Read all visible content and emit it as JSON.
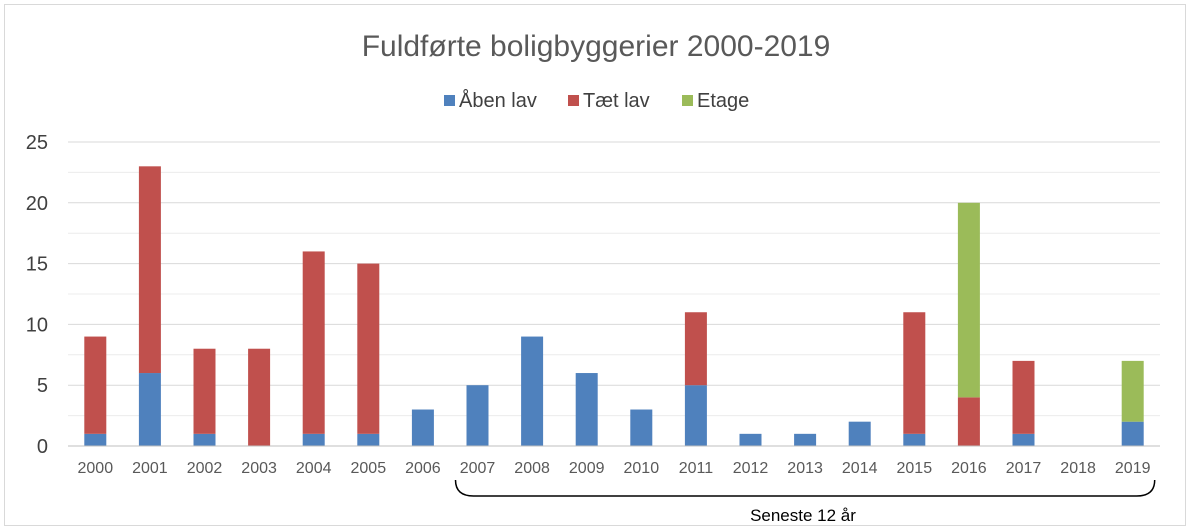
{
  "chart_data": {
    "type": "bar",
    "stacked": true,
    "title": "Fuldførte boligbyggerier 2000-2019",
    "categories": [
      "2000",
      "2001",
      "2002",
      "2003",
      "2004",
      "2005",
      "2006",
      "2007",
      "2008",
      "2009",
      "2010",
      "2011",
      "2012",
      "2013",
      "2014",
      "2015",
      "2016",
      "2017",
      "2018",
      "2019"
    ],
    "series": [
      {
        "name": "Åben lav",
        "color": "#4f81bd",
        "values": [
          1,
          6,
          1,
          0,
          1,
          1,
          3,
          5,
          9,
          6,
          3,
          5,
          1,
          1,
          2,
          1,
          0,
          1,
          0,
          2
        ]
      },
      {
        "name": "Tæt lav",
        "color": "#c0504d",
        "values": [
          8,
          17,
          7,
          8,
          15,
          14,
          0,
          0,
          0,
          0,
          0,
          6,
          0,
          0,
          0,
          10,
          4,
          6,
          0,
          0
        ]
      },
      {
        "name": "Etage",
        "color": "#9bbb59",
        "values": [
          0,
          0,
          0,
          0,
          0,
          0,
          0,
          0,
          0,
          0,
          0,
          0,
          0,
          0,
          0,
          0,
          16,
          0,
          0,
          5
        ]
      }
    ],
    "ylim": [
      0,
      25
    ],
    "yticks": [
      0,
      5,
      10,
      15,
      20,
      25
    ],
    "grid": true,
    "legend_position": "top",
    "annotation": {
      "text": "Seneste 12 år",
      "from": "2007",
      "to": "2019"
    }
  }
}
